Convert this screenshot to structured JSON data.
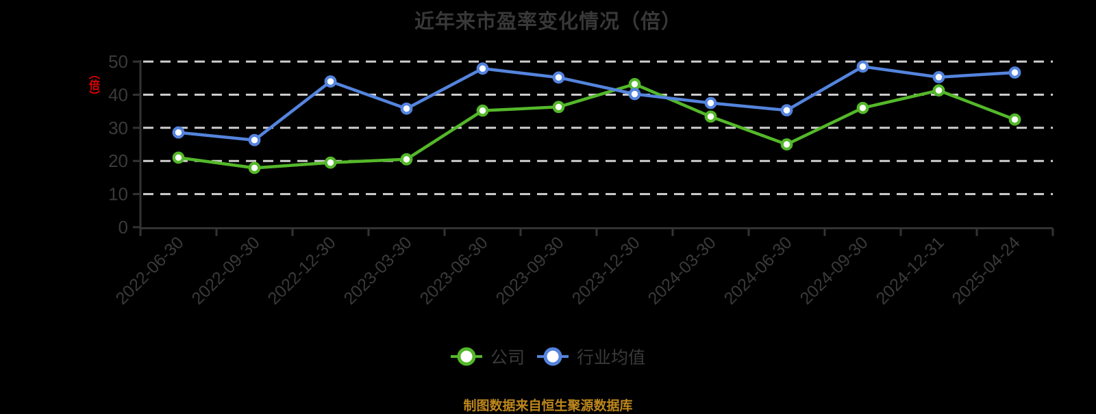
{
  "title": "近年来市盈率变化情况（倍）",
  "y_axis_unit_label": "（倍）",
  "footer_note": "制图数据来自恒生聚源数据库",
  "colors": {
    "company_series": "#54b82a",
    "industry_series": "#5484dd",
    "unit_label_red": "#e60000",
    "footer_gold": "#bd871b",
    "axis_line": "#333333",
    "gridline": "#cfcfcf",
    "tick_text": "#3a3a3a",
    "title_text": "#383838",
    "marker_fill": "#ffffff",
    "background": "#000000"
  },
  "chart_data": {
    "type": "line",
    "title": "近年来市盈率变化情况（倍）",
    "xlabel": "",
    "ylabel": "（倍）",
    "categories": [
      "2022-06-30",
      "2022-09-30",
      "2022-12-30",
      "2023-03-30",
      "2023-06-30",
      "2023-09-30",
      "2023-12-30",
      "2024-03-30",
      "2024-06-30",
      "2024-09-30",
      "2024-12-31",
      "2025-04-24"
    ],
    "series": [
      {
        "name": "公司",
        "color": "#54b82a",
        "values": [
          21.0,
          17.9,
          19.5,
          20.5,
          35.2,
          36.3,
          43.2,
          33.4,
          25.0,
          36.0,
          41.3,
          32.5
        ]
      },
      {
        "name": "行业均值",
        "color": "#5484dd",
        "values": [
          28.6,
          26.3,
          44.0,
          35.8,
          47.9,
          45.2,
          40.2,
          37.5,
          35.3,
          48.5,
          45.3,
          46.7
        ]
      }
    ],
    "ylim": [
      0,
      50
    ],
    "y_ticks": [
      0,
      10,
      20,
      30,
      40,
      50
    ],
    "grid": "horizontal-dashed",
    "x_label_rotation": 45,
    "legend_position": "bottom",
    "marker": "circle-white-fill"
  }
}
